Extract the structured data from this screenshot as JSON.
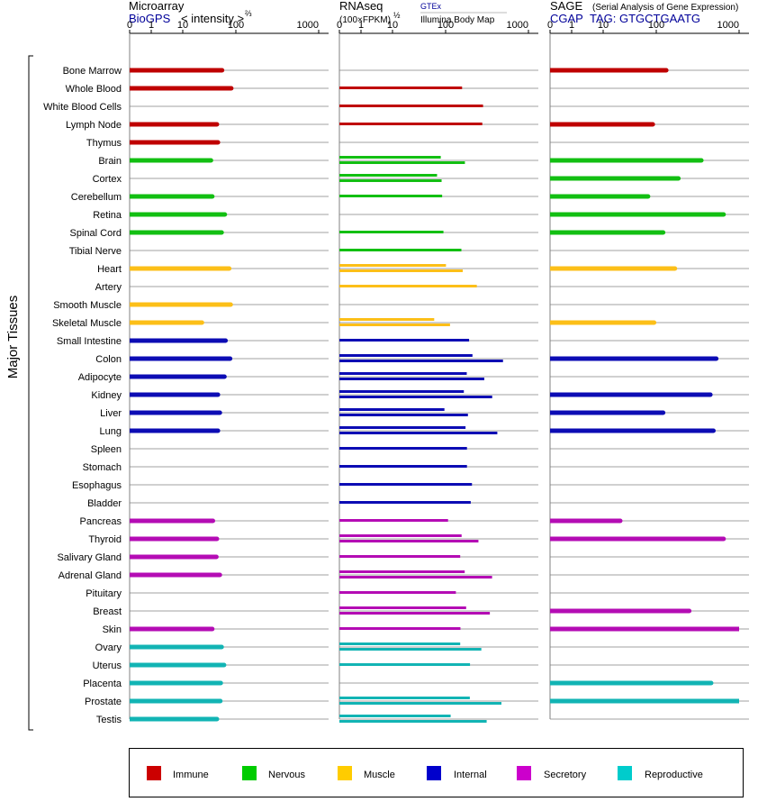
{
  "chart_data": {
    "type": "bar",
    "group_label": "Major Tissues",
    "panels": [
      {
        "title": "Microarray",
        "subtitle_link": "BioGPS",
        "subtitle_text": "< intensity >",
        "subtitle_sup": "⅔",
        "ticks": [
          "0",
          "1",
          "10",
          "100",
          "1000"
        ],
        "series_per_row": 1
      },
      {
        "title": "RNAseq",
        "unit_label": "(100×FPKM)",
        "unit_sup": "½",
        "source_top": "GTEx",
        "source_bottom": "Illumina Body Map",
        "ticks": [
          "0",
          "1",
          "10",
          "100",
          "1000"
        ],
        "series_per_row": 2
      },
      {
        "title": "SAGE",
        "title_note": "(Serial Analysis of Gene Expression)",
        "tag_link": "CGAP",
        "tag_text": "TAG: GTGCTGAATG",
        "ticks": [
          "0",
          "1",
          "10",
          "100",
          "1000"
        ],
        "series_per_row": 1
      }
    ],
    "categories": [
      "Bone Marrow",
      "Whole Blood",
      "White Blood Cells",
      "Lymph Node",
      "Thymus",
      "Brain",
      "Cortex",
      "Cerebellum",
      "Retina",
      "Spinal Cord",
      "Tibial Nerve",
      "Heart",
      "Artery",
      "Smooth Muscle",
      "Skeletal Muscle",
      "Small Intestine",
      "Colon",
      "Adipocyte",
      "Kidney",
      "Liver",
      "Lung",
      "Spleen",
      "Stomach",
      "Esophagus",
      "Bladder",
      "Pancreas",
      "Thyroid",
      "Salivary Gland",
      "Adrenal Gland",
      "Pituitary",
      "Breast",
      "Skin",
      "Ovary",
      "Uterus",
      "Placenta",
      "Prostate",
      "Testis"
    ],
    "tissue_groups": [
      "Immune",
      "Immune",
      "Immune",
      "Immune",
      "Immune",
      "Nervous",
      "Nervous",
      "Nervous",
      "Nervous",
      "Nervous",
      "Nervous",
      "Muscle",
      "Muscle",
      "Muscle",
      "Muscle",
      "Internal",
      "Internal",
      "Internal",
      "Internal",
      "Internal",
      "Internal",
      "Internal",
      "Internal",
      "Internal",
      "Internal",
      "Secretory",
      "Secretory",
      "Secretory",
      "Secretory",
      "Secretory",
      "Secretory",
      "Secretory",
      "Reproductive",
      "Reproductive",
      "Reproductive",
      "Reproductive",
      "Reproductive"
    ],
    "microarray": [
      55,
      82,
      null,
      44,
      46,
      34,
      null,
      36,
      62,
      54,
      null,
      75,
      null,
      80,
      23,
      64,
      78,
      61,
      46,
      50,
      46,
      null,
      null,
      null,
      null,
      37,
      44,
      43,
      50,
      null,
      null,
      36,
      54,
      60,
      52,
      51,
      44
    ],
    "rnaseq_gtex": [
      null,
      null,
      null,
      null,
      null,
      81,
      69,
      null,
      null,
      null,
      null,
      101,
      null,
      null,
      61,
      null,
      null,
      null,
      null,
      null,
      null,
      null,
      null,
      null,
      null,
      null,
      null,
      null,
      null,
      null,
      null,
      null,
      null,
      null,
      null,
      null,
      null
    ],
    "rnaseq_ibm": [
      null,
      null,
      null,
      null,
      null,
      null,
      null,
      null,
      null,
      null,
      null,
      null,
      null,
      null,
      null,
      null,
      null,
      null,
      null,
      null,
      null,
      null,
      null,
      null,
      null,
      null,
      null,
      null,
      null,
      null,
      null,
      null,
      null,
      null,
      null,
      null,
      null
    ],
    "rnaseq_top": [
      null,
      158,
      null,
      null,
      null,
      null,
      84,
      86,
      null,
      91,
      155,
      123,
      null,
      null,
      null,
      192,
      211,
      180,
      166,
      95,
      174,
      181,
      181,
      208,
      201,
      107,
      156,
      150,
      170,
      133,
      177,
      151,
      150,
      197,
      null,
      196,
      115
    ],
    "rnaseq_bottom": [
      null,
      null,
      283,
      277,
      null,
      171,
      null,
      null,
      null,
      null,
      null,
      161,
      238,
      null,
      113,
      null,
      493,
      293,
      365,
      186,
      421,
      null,
      null,
      null,
      null,
      null,
      249,
      null,
      364,
      null,
      342,
      null,
      270,
      null,
      null,
      472,
      313
    ],
    "sage": [
      132,
      null,
      null,
      86,
      null,
      350,
      185,
      70,
      650,
      121,
      null,
      168,
      null,
      null,
      91,
      null,
      530,
      null,
      450,
      121,
      490,
      null,
      null,
      null,
      null,
      21,
      650,
      null,
      null,
      null,
      250,
      1000,
      null,
      null,
      460,
      1000,
      null
    ],
    "axis_max": 1000
  },
  "legend": [
    {
      "label": "Immune",
      "color": "#cc0000"
    },
    {
      "label": "Nervous",
      "color": "#00cc00"
    },
    {
      "label": "Muscle",
      "color": "#ffcc00"
    },
    {
      "label": "Internal",
      "color": "#0000cc"
    },
    {
      "label": "Secretory",
      "color": "#cc00cc"
    },
    {
      "label": "Reproductive",
      "color": "#00cccc"
    }
  ],
  "colors": {
    "Immune": "#bf0000",
    "Nervous": "#12bf12",
    "Muscle": "#fcbf18",
    "Internal": "#0c0cb4",
    "Secretory": "#b40cb4",
    "Reproductive": "#12b4b4",
    "link": "#000099",
    "gridline": "#a0a0a0"
  }
}
